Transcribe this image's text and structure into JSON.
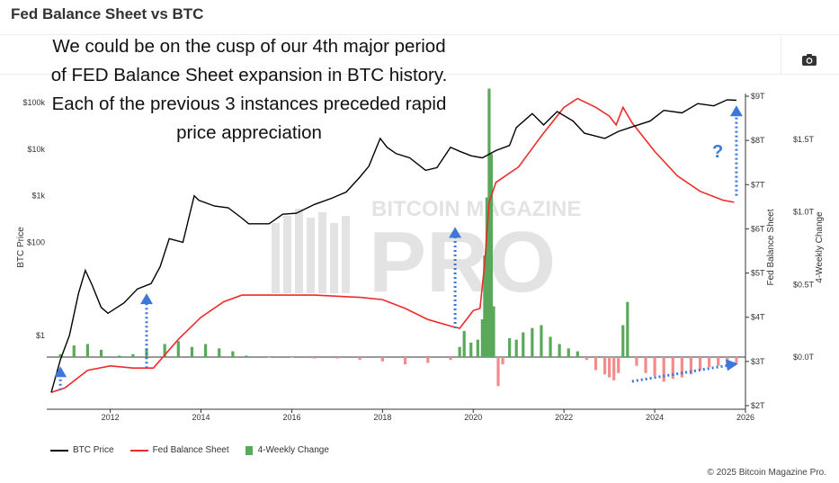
{
  "page": {
    "title": "Fed Balance Sheet vs BTC",
    "annotation": "We could be on the cusp of our 4th major period of FED Balance Sheet expansion in BTC history. Each of the previous 3 instances preceded rapid price appreciation",
    "question_mark": "?",
    "copyright": "© 2025 Bitcoin Magazine Pro.",
    "watermark_top": "BITCOIN MAGAZINE",
    "watermark_main": "PRO",
    "toolbar": {
      "camera_icon": "camera-icon"
    }
  },
  "chart_data": {
    "type": "line",
    "title": "Fed Balance Sheet vs BTC",
    "x_axis": {
      "min": 2010.6,
      "max": 2026.0,
      "ticks": [
        "2012",
        "2014",
        "2016",
        "2018",
        "2020",
        "2022",
        "2024",
        "2026"
      ]
    },
    "y_axes": {
      "btc": {
        "label": "BTC Price",
        "scale": "log",
        "ticks": [
          "$1",
          "$100",
          "$1k",
          "$10k",
          "$100k"
        ]
      },
      "fed": {
        "label": "Fed Balance Sheet",
        "min": 2,
        "max": 9,
        "ticks": [
          "$2T",
          "$3T",
          "$4T",
          "$5T",
          "$6T",
          "$7T",
          "$8T",
          "$9T"
        ]
      },
      "change": {
        "label": "4-Weekly Change",
        "ticks": [
          "$0.0T",
          "$0.5T",
          "$1.0T",
          "$1.5T"
        ]
      }
    },
    "colors": {
      "btc": "#000000",
      "fed": "#ee2a2a",
      "change_pos": "#5aa85a",
      "change_neg": "#f08c8c",
      "arrow": "#3d78d8"
    },
    "series": [
      {
        "name": "BTC Price",
        "unit": "USD",
        "scale": "log",
        "x": [
          2010.7,
          2010.9,
          2011.1,
          2011.3,
          2011.45,
          2011.6,
          2011.8,
          2011.95,
          2012.3,
          2012.6,
          2012.9,
          2013.1,
          2013.3,
          2013.6,
          2013.85,
          2013.95,
          2014.3,
          2014.6,
          2014.9,
          2015.05,
          2015.5,
          2015.8,
          2016.1,
          2016.5,
          2016.9,
          2017.2,
          2017.5,
          2017.7,
          2017.95,
          2018.1,
          2018.3,
          2018.6,
          2018.95,
          2019.2,
          2019.5,
          2019.7,
          2019.95,
          2020.2,
          2020.5,
          2020.8,
          2020.95,
          2021.3,
          2021.55,
          2021.85,
          2022.2,
          2022.45,
          2022.9,
          2023.2,
          2023.5,
          2023.9,
          2024.2,
          2024.6,
          2024.95,
          2025.3,
          2025.6,
          2025.8
        ],
        "y": [
          0.06,
          0.3,
          1,
          8,
          25,
          12,
          4,
          3,
          5,
          10,
          13,
          30,
          120,
          100,
          1000,
          800,
          600,
          550,
          330,
          250,
          250,
          400,
          420,
          650,
          900,
          1200,
          2500,
          4300,
          17000,
          11000,
          8000,
          6500,
          3500,
          4000,
          11000,
          9000,
          7200,
          6500,
          9300,
          12000,
          29000,
          58000,
          33000,
          64000,
          40000,
          22000,
          17000,
          24000,
          30000,
          40000,
          68000,
          60000,
          95000,
          85000,
          115000,
          112000
        ]
      },
      {
        "name": "Fed Balance Sheet",
        "unit": "USD trillions",
        "x": [
          2010.7,
          2011.0,
          2011.5,
          2012.0,
          2012.5,
          2012.95,
          2013.5,
          2014.0,
          2014.5,
          2014.9,
          2015.5,
          2016.5,
          2017.5,
          2018.0,
          2018.5,
          2019.0,
          2019.5,
          2019.7,
          2019.85,
          2020.0,
          2020.15,
          2020.25,
          2020.35,
          2020.5,
          2021.0,
          2021.5,
          2022.0,
          2022.3,
          2022.7,
          2023.0,
          2023.15,
          2023.3,
          2023.5,
          2024.0,
          2024.5,
          2025.0,
          2025.5,
          2025.75
        ],
        "y": [
          2.3,
          2.4,
          2.8,
          2.9,
          2.85,
          2.85,
          3.5,
          4.0,
          4.35,
          4.5,
          4.5,
          4.5,
          4.45,
          4.4,
          4.2,
          3.95,
          3.8,
          3.75,
          3.95,
          4.15,
          4.2,
          5.2,
          6.6,
          7.05,
          7.4,
          8.1,
          8.75,
          8.95,
          8.75,
          8.55,
          8.35,
          8.75,
          8.4,
          7.75,
          7.2,
          6.85,
          6.65,
          6.6
        ]
      },
      {
        "name": "4-Weekly Change",
        "unit": "USD trillions",
        "type": "bar",
        "x": [
          2010.9,
          2011.2,
          2011.5,
          2011.8,
          2012.2,
          2012.5,
          2012.8,
          2013.2,
          2013.5,
          2013.8,
          2014.1,
          2014.4,
          2014.7,
          2015.0,
          2015.5,
          2016.0,
          2016.5,
          2017.0,
          2017.5,
          2018.0,
          2018.5,
          2019.0,
          2019.5,
          2019.7,
          2019.8,
          2019.95,
          2020.1,
          2020.2,
          2020.25,
          2020.3,
          2020.35,
          2020.4,
          2020.45,
          2020.55,
          2020.65,
          2020.8,
          2020.95,
          2021.1,
          2021.3,
          2021.5,
          2021.7,
          2021.9,
          2022.1,
          2022.3,
          2022.5,
          2022.7,
          2022.9,
          2023.0,
          2023.1,
          2023.2,
          2023.3,
          2023.4,
          2023.6,
          2023.8,
          2024.0,
          2024.2,
          2024.4,
          2024.6,
          2024.8,
          2025.0,
          2025.2,
          2025.4,
          2025.6,
          2025.8
        ],
        "y": [
          0.02,
          0.08,
          0.09,
          0.05,
          0.01,
          0.02,
          0.06,
          0.09,
          0.11,
          0.07,
          0.09,
          0.06,
          0.04,
          0.01,
          0.0,
          0.0,
          -0.01,
          -0.01,
          -0.02,
          -0.03,
          -0.05,
          -0.04,
          -0.02,
          0.07,
          0.18,
          0.1,
          0.12,
          0.26,
          0.7,
          1.1,
          1.85,
          1.4,
          0.35,
          -0.2,
          -0.05,
          0.13,
          0.12,
          0.17,
          0.2,
          0.22,
          0.14,
          0.09,
          0.06,
          0.04,
          -0.02,
          -0.09,
          -0.12,
          -0.14,
          -0.16,
          -0.11,
          0.22,
          0.38,
          -0.06,
          -0.11,
          -0.13,
          -0.17,
          -0.15,
          -0.14,
          -0.12,
          -0.09,
          -0.07,
          -0.06,
          -0.05,
          -0.04
        ]
      }
    ],
    "arrows": [
      {
        "x": 2010.9,
        "from_fed": 2.35,
        "to_fed": 2.85
      },
      {
        "x": 2012.8,
        "from_fed": 2.85,
        "to_fed": 4.5
      },
      {
        "x": 2019.6,
        "from_fed": 3.75,
        "to_fed": 6.0
      },
      {
        "x": 2025.8,
        "from_fed": 6.75,
        "to_fed": 8.75
      }
    ],
    "trend_arrow": {
      "from": [
        2023.5,
        2.55
      ],
      "to": [
        2025.8,
        2.95
      ]
    },
    "legend": [
      "BTC Price",
      "Fed Balance Sheet",
      "4-Weekly Change"
    ],
    "legend_position": "bottom-left",
    "grid": false
  }
}
